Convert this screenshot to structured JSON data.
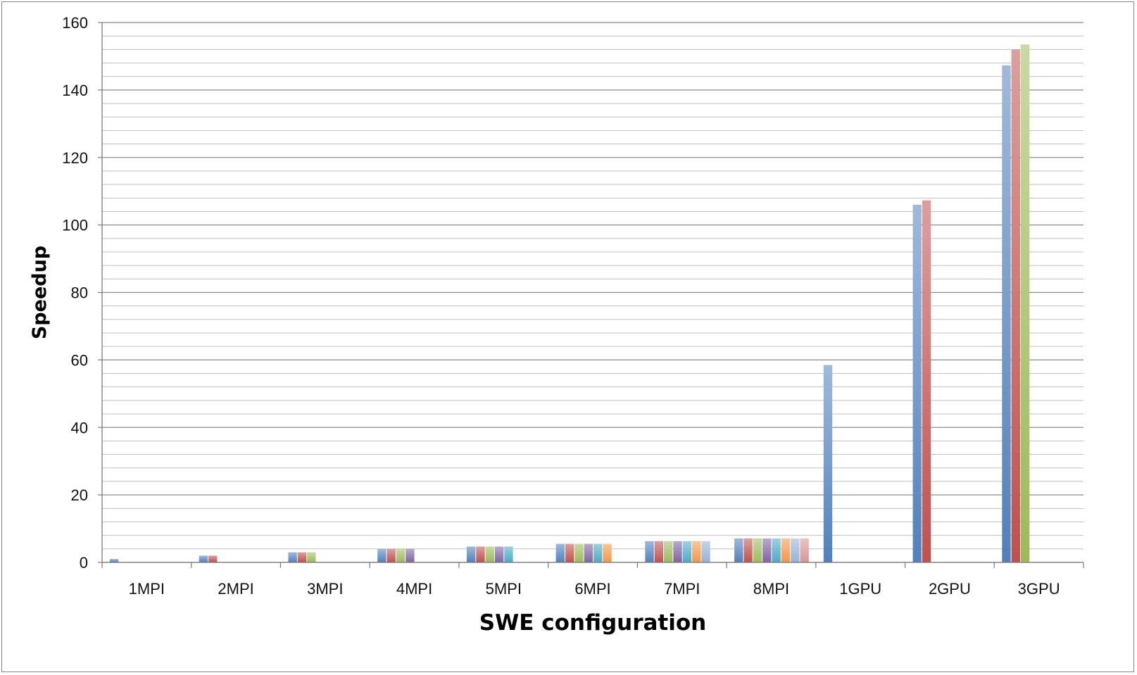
{
  "chart_data": {
    "type": "bar",
    "title": "",
    "xlabel": "SWE configuration",
    "ylabel": "Speedup",
    "categories": [
      "1MPI",
      "2MPI",
      "3MPI",
      "4MPI",
      "5MPI",
      "6MPI",
      "7MPI",
      "8MPI",
      "1GPU",
      "2GPU",
      "3GPU"
    ],
    "ylim": [
      0,
      160
    ],
    "yticks": [
      0,
      20,
      40,
      60,
      80,
      100,
      120,
      140,
      160
    ],
    "minor_grid_step": 4,
    "grid": true,
    "legend": "none",
    "groups": [
      [
        1
      ],
      [
        2,
        2
      ],
      [
        3,
        3,
        3
      ],
      [
        4,
        4,
        4,
        4
      ],
      [
        4.7,
        4.7,
        4.7,
        4.7,
        4.7
      ],
      [
        5.5,
        5.5,
        5.5,
        5.5,
        5.5,
        5.5
      ],
      [
        6.3,
        6.3,
        6.3,
        6.3,
        6.3,
        6.3,
        6.3
      ],
      [
        7.1,
        7.1,
        7.1,
        7.1,
        7.1,
        7.1,
        7.1,
        7.1
      ],
      [
        58.5
      ],
      [
        106,
        107.3
      ],
      [
        147.3,
        152,
        153.5
      ]
    ],
    "series_colors": [
      "#4f81bd",
      "#c0504d",
      "#9bbb59",
      "#8064a2",
      "#4bacc6",
      "#f79646",
      "#95b3d7",
      "#d99694"
    ]
  }
}
